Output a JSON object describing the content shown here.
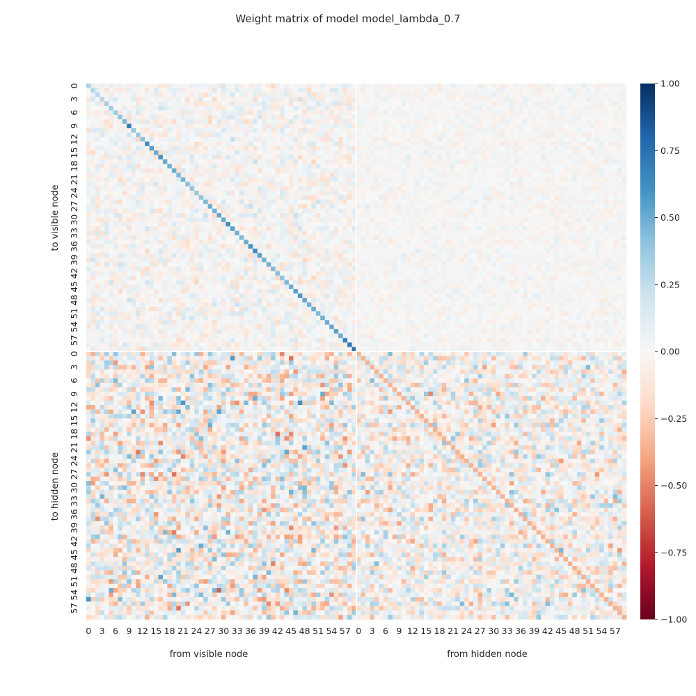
{
  "chart_data": {
    "type": "heatmap",
    "title": "Weight matrix of model model_lambda_0.7",
    "xlabel_left": "from visible node",
    "xlabel_right": "from hidden node",
    "ylabel_top": "to visible node",
    "ylabel_bottom": "to hidden node",
    "n_visible": 60,
    "n_hidden": 60,
    "tick_labels": [
      "0",
      "3",
      "6",
      "9",
      "12",
      "15",
      "18",
      "21",
      "24",
      "27",
      "30",
      "33",
      "36",
      "39",
      "42",
      "45",
      "48",
      "51",
      "54",
      "57"
    ],
    "colorbar": {
      "range": [
        -1.0,
        1.0
      ],
      "tick_labels": [
        "1.00",
        "0.75",
        "0.50",
        "0.25",
        "0.00",
        "−0.25",
        "−0.50",
        "−0.75",
        "−1.00"
      ],
      "tick_values": [
        1.0,
        0.75,
        0.5,
        0.25,
        0.0,
        -0.25,
        -0.5,
        -0.75,
        -1.0
      ],
      "colormap": "RdBu",
      "color_stops": [
        "#67001f",
        "#b2182b",
        "#d6604d",
        "#f4a582",
        "#fddbc7",
        "#f7f7f7",
        "#d1e5f0",
        "#92c5de",
        "#4393c3",
        "#2166ac",
        "#053061"
      ]
    },
    "blocks": {
      "visible_to_visible": {
        "off_diagonal_scale": 0.08,
        "diagonal_values": [
          0.32,
          0.3,
          0.28,
          0.3,
          0.33,
          0.35,
          0.36,
          0.4,
          0.45,
          0.7,
          0.4,
          0.38,
          0.42,
          0.62,
          0.55,
          0.5,
          0.6,
          0.52,
          0.48,
          0.5,
          0.45,
          0.48,
          0.42,
          0.4,
          0.38,
          0.4,
          0.45,
          0.5,
          0.48,
          0.52,
          0.5,
          0.62,
          0.55,
          0.48,
          0.45,
          0.5,
          0.6,
          0.65,
          0.55,
          0.5,
          0.48,
          0.45,
          0.42,
          0.4,
          0.45,
          0.5,
          0.55,
          0.58,
          0.52,
          0.48,
          0.5,
          0.45,
          0.48,
          0.5,
          0.52,
          0.55,
          0.5,
          0.68,
          0.72,
          0.75
        ]
      },
      "hidden_to_visible": {
        "scale": 0.04
      },
      "visible_to_hidden": {
        "scale": 0.2
      },
      "hidden_to_hidden": {
        "scale": 0.16
      }
    },
    "grid": false
  }
}
